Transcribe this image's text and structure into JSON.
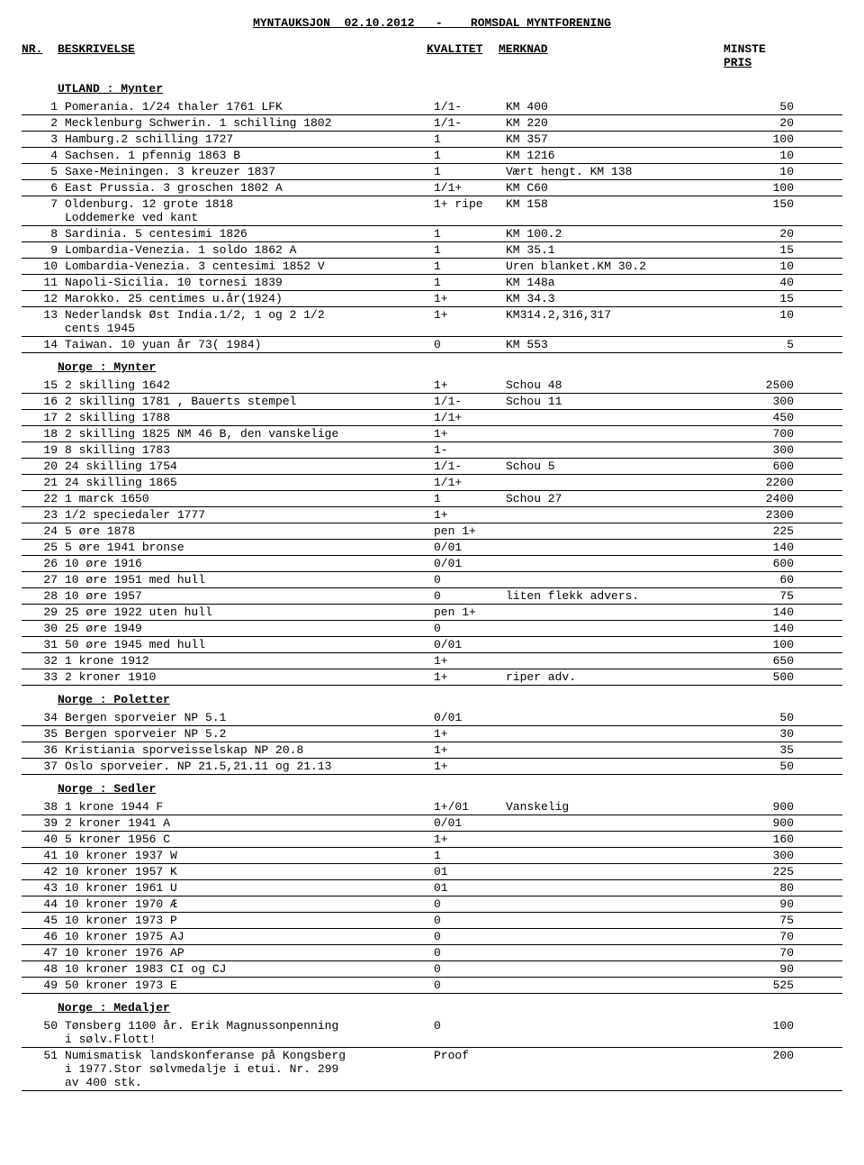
{
  "title": "MYNTAUKSJON  02.10.2012   -    ROMSDAL MYNTFORENING",
  "headers": {
    "nr": "NR.",
    "besk": "BESKRIVELSE",
    "kval": "KVALITET",
    "merk": "MERKNAD",
    "minste": "MINSTE",
    "pris": "PRIS"
  },
  "sections": [
    {
      "title": "UTLAND : Mynter",
      "rows": [
        {
          "nr": "1",
          "besk": "Pomerania. 1/24 thaler 1761 LFK",
          "kval": "1/1-",
          "merk": "KM 400",
          "pris": "50"
        },
        {
          "nr": "2",
          "besk": "Mecklenburg Schwerin. 1 schilling 1802",
          "kval": "1/1-",
          "merk": "KM 220",
          "pris": "20"
        },
        {
          "nr": "3",
          "besk": "Hamburg.2 schilling 1727",
          "kval": "1",
          "merk": "KM 357",
          "pris": "100"
        },
        {
          "nr": "4",
          "besk": "Sachsen. 1 pfennig 1863 B",
          "kval": "1",
          "merk": "KM 1216",
          "pris": "10"
        },
        {
          "nr": "5",
          "besk": "Saxe-Meiningen. 3 kreuzer 1837",
          "kval": "1",
          "merk": "Vært hengt. KM 138",
          "pris": "10"
        },
        {
          "nr": "6",
          "besk": "East Prussia. 3 groschen 1802 A",
          "kval": "1/1+",
          "merk": "KM C60",
          "pris": "100"
        },
        {
          "nr": "7",
          "besk": "Oldenburg. 12 grote 1818\nLoddemerke ved kant",
          "kval": "1+ ripe",
          "merk": "KM 158",
          "pris": "150"
        },
        {
          "nr": "8",
          "besk": "Sardinia. 5 centesimi 1826",
          "kval": "1",
          "merk": "KM 100.2",
          "pris": "20"
        },
        {
          "nr": "9",
          "besk": "Lombardia-Venezia. 1 soldo 1862 A",
          "kval": "1",
          "merk": "KM 35.1",
          "pris": "15"
        },
        {
          "nr": "10",
          "besk": "Lombardia-Venezia. 3 centesimi 1852 V",
          "kval": "1",
          "merk": "Uren blanket.KM 30.2",
          "pris": "10"
        },
        {
          "nr": "11",
          "besk": "Napoli-Sicilia. 10 tornesi 1839",
          "kval": "1",
          "merk": "KM 148a",
          "pris": "40"
        },
        {
          "nr": "12",
          "besk": "Marokko. 25 centimes u.år(1924)",
          "kval": "1+",
          "merk": "KM 34.3",
          "pris": "15"
        },
        {
          "nr": "13",
          "besk": "Nederlandsk Øst India.1/2, 1 og 2 1/2\ncents 1945",
          "kval": "1+",
          "merk": "KM314.2,316,317",
          "pris": "10"
        },
        {
          "nr": "14",
          "besk": "Taiwan. 10 yuan år 73( 1984)",
          "kval": "0",
          "merk": "KM 553",
          "pris": "5"
        }
      ]
    },
    {
      "title": "Norge : Mynter",
      "rows": [
        {
          "nr": "15",
          "besk": "2 skilling 1642",
          "kval": "1+",
          "merk": "Schou 48",
          "pris": "2500"
        },
        {
          "nr": "16",
          "besk": "2 skilling 1781 , Bauerts stempel",
          "kval": "1/1-",
          "merk": "Schou 11",
          "pris": "300"
        },
        {
          "nr": "17",
          "besk": "2 skilling 1788",
          "kval": "1/1+",
          "merk": "",
          "pris": "450"
        },
        {
          "nr": "18",
          "besk": "2 skilling 1825 NM 46 B, den vanskelige",
          "kval": "1+",
          "merk": "",
          "pris": "700"
        },
        {
          "nr": "19",
          "besk": "8 skilling 1783",
          "kval": "1-",
          "merk": "",
          "pris": "300"
        },
        {
          "nr": "20",
          "besk": "24 skilling 1754",
          "kval": "1/1-",
          "merk": "Schou 5",
          "pris": "600"
        },
        {
          "nr": "21",
          "besk": "24 skilling 1865",
          "kval": "1/1+",
          "merk": "",
          "pris": "2200"
        },
        {
          "nr": "22",
          "besk": "1 marck 1650",
          "kval": "1",
          "merk": "Schou 27",
          "pris": "2400"
        },
        {
          "nr": "23",
          "besk": "1/2 speciedaler 1777",
          "kval": "1+",
          "merk": "",
          "pris": "2300"
        },
        {
          "nr": "24",
          "besk": "5 øre 1878",
          "kval": "pen 1+",
          "merk": "",
          "pris": "225"
        },
        {
          "nr": "25",
          "besk": "5 øre 1941 bronse",
          "kval": "0/01",
          "merk": "",
          "pris": "140"
        },
        {
          "nr": "26",
          "besk": "10 øre 1916",
          "kval": "0/01",
          "merk": "",
          "pris": "600"
        },
        {
          "nr": "27",
          "besk": "10 øre 1951 med hull",
          "kval": "0",
          "merk": "",
          "pris": "60"
        },
        {
          "nr": "28",
          "besk": "10 øre 1957",
          "kval": "0",
          "merk": "liten flekk advers.",
          "pris": "75"
        },
        {
          "nr": "29",
          "besk": "25 øre 1922 uten hull",
          "kval": "pen 1+",
          "merk": "",
          "pris": "140"
        },
        {
          "nr": "30",
          "besk": "25 øre 1949",
          "kval": "0",
          "merk": "",
          "pris": "140"
        },
        {
          "nr": "31",
          "besk": "50 øre 1945 med hull",
          "kval": "0/01",
          "merk": "",
          "pris": "100"
        },
        {
          "nr": "32",
          "besk": "1 krone 1912",
          "kval": "1+",
          "merk": "",
          "pris": "650"
        },
        {
          "nr": "33",
          "besk": "2 kroner 1910",
          "kval": "1+",
          "merk": "riper adv.",
          "pris": "500"
        }
      ]
    },
    {
      "title": "Norge : Poletter",
      "rows": [
        {
          "nr": "34",
          "besk": "Bergen sporveier NP 5.1",
          "kval": "0/01",
          "merk": "",
          "pris": "50"
        },
        {
          "nr": "35",
          "besk": "Bergen sporveier NP 5.2",
          "kval": "1+",
          "merk": "",
          "pris": "30"
        },
        {
          "nr": "36",
          "besk": "Kristiania sporveisselskap NP 20.8",
          "kval": "1+",
          "merk": "",
          "pris": "35"
        },
        {
          "nr": "37",
          "besk": "Oslo sporveier. NP 21.5,21.11 og 21.13",
          "kval": "1+",
          "merk": "",
          "pris": "50"
        }
      ]
    },
    {
      "title": "Norge : Sedler",
      "rows": [
        {
          "nr": "38",
          "besk": "1 krone 1944 F",
          "kval": "1+/01",
          "merk": "Vanskelig",
          "pris": "900"
        },
        {
          "nr": "39",
          "besk": "2 kroner 1941 A",
          "kval": "0/01",
          "merk": "",
          "pris": "900"
        },
        {
          "nr": "40",
          "besk": "5 kroner 1956 C",
          "kval": "1+",
          "merk": "",
          "pris": "160"
        },
        {
          "nr": "41",
          "besk": "10 kroner 1937 W",
          "kval": "1",
          "merk": "",
          "pris": "300"
        },
        {
          "nr": "42",
          "besk": "10 kroner 1957 K",
          "kval": "01",
          "merk": "",
          "pris": "225"
        },
        {
          "nr": "43",
          "besk": "10 kroner 1961 U",
          "kval": "01",
          "merk": "",
          "pris": "80"
        },
        {
          "nr": "44",
          "besk": "10 kroner 1970 Æ",
          "kval": "0",
          "merk": "",
          "pris": "90"
        },
        {
          "nr": "45",
          "besk": "10 kroner 1973 P",
          "kval": "0",
          "merk": "",
          "pris": "75"
        },
        {
          "nr": "46",
          "besk": "10 kroner 1975 AJ",
          "kval": "0",
          "merk": "",
          "pris": "70"
        },
        {
          "nr": "47",
          "besk": "10 kroner 1976 AP",
          "kval": "0",
          "merk": "",
          "pris": "70"
        },
        {
          "nr": "48",
          "besk": "10 kroner 1983 CI og CJ",
          "kval": "0",
          "merk": "",
          "pris": "90"
        },
        {
          "nr": "49",
          "besk": "50 kroner 1973 E",
          "kval": "0",
          "merk": "",
          "pris": "525"
        }
      ]
    },
    {
      "title": "Norge : Medaljer",
      "rows": [
        {
          "nr": "50",
          "besk": "Tønsberg 1100 år. Erik Magnussonpenning\ni sølv.Flott!",
          "kval": "0",
          "merk": "",
          "pris": "100"
        },
        {
          "nr": "51",
          "besk": "Numismatisk landskonferanse på Kongsberg\ni 1977.Stor sølvmedalje i etui. Nr. 299\nav 400 stk.",
          "kval": "Proof",
          "merk": "",
          "pris": "200"
        }
      ]
    }
  ]
}
